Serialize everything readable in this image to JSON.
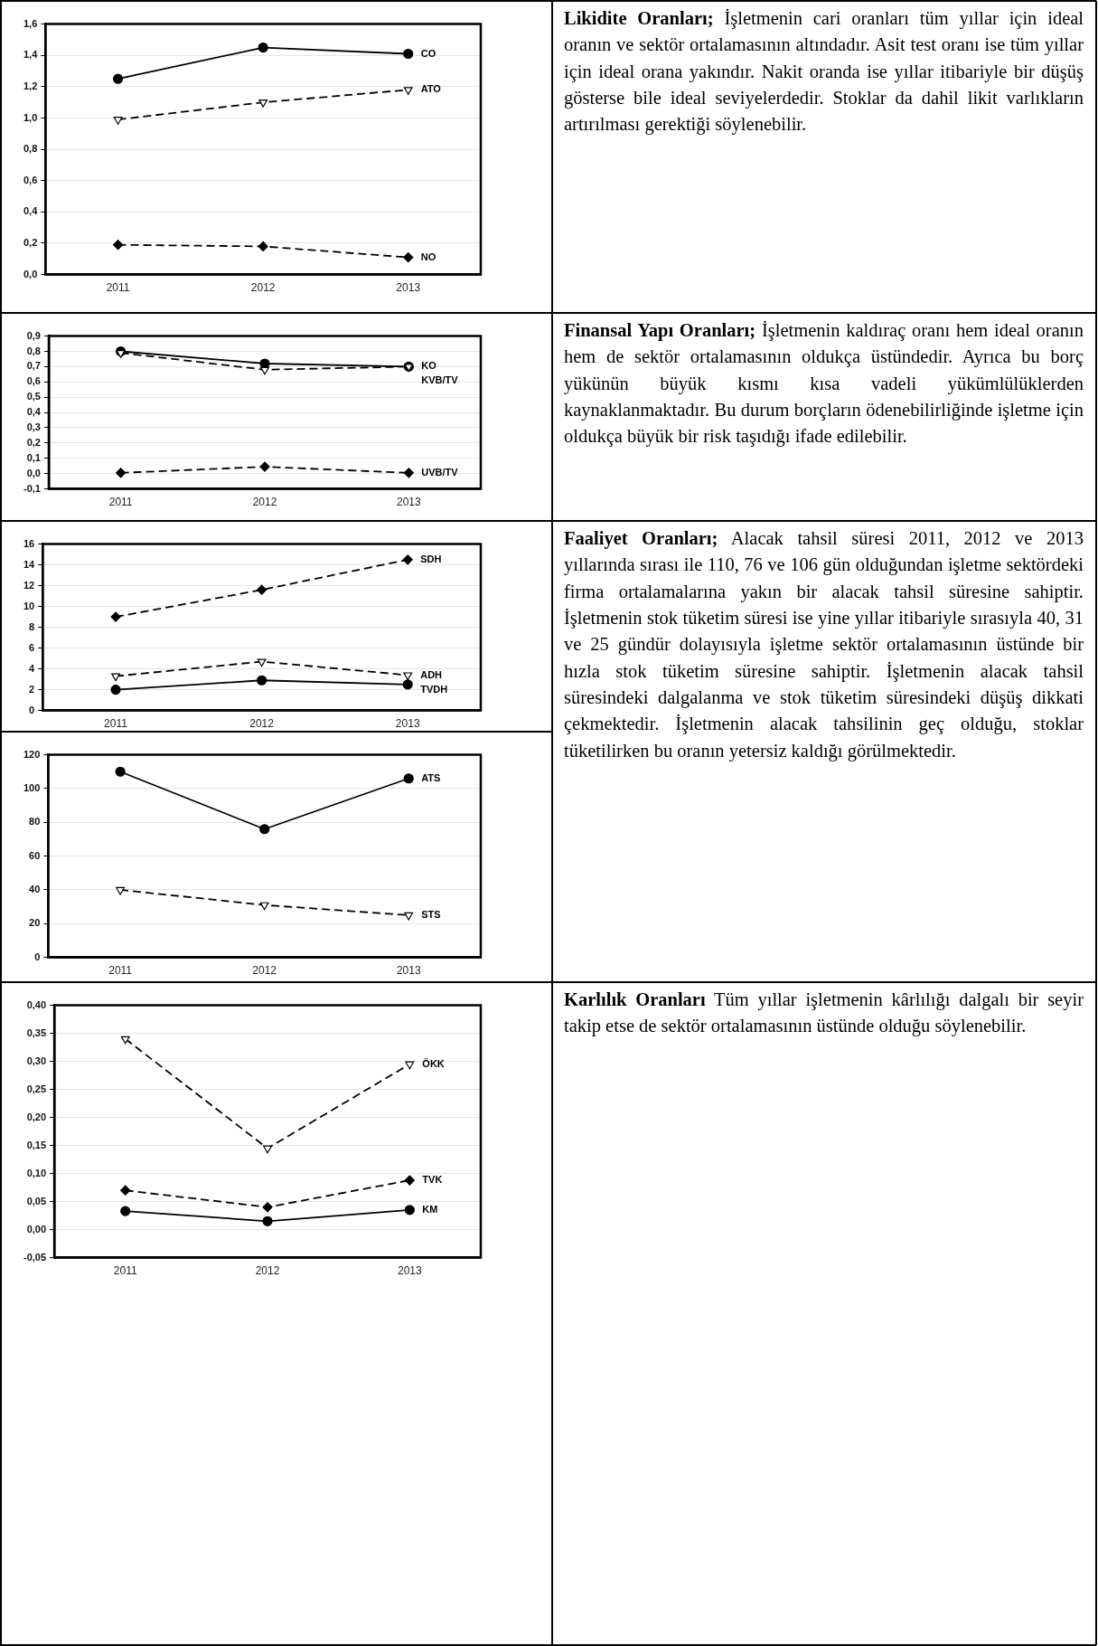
{
  "chart_data": [
    {
      "type": "line",
      "categories": [
        "2011",
        "2012",
        "2013"
      ],
      "ylim": [
        0,
        1.6
      ],
      "yticks": [
        {
          "value": 0,
          "label": "0,0"
        },
        {
          "value": 0.2,
          "label": "0,2"
        },
        {
          "value": 0.4,
          "label": "0,4"
        },
        {
          "value": 0.6,
          "label": "0,6"
        },
        {
          "value": 0.8,
          "label": "0,8"
        },
        {
          "value": 1.0,
          "label": "1,0"
        },
        {
          "value": 1.2,
          "label": "1,2"
        },
        {
          "value": 1.4,
          "label": "1,4"
        },
        {
          "value": 1.6,
          "label": "1,6"
        }
      ],
      "grid": "y",
      "legend": false,
      "series": [
        {
          "name": "CO",
          "color": "#000000",
          "marker": "circle",
          "line_style": "solid",
          "values": [
            1.25,
            1.45,
            1.41
          ]
        },
        {
          "name": "ATO",
          "color": "#000000",
          "marker": "triangle",
          "line_style": "dashed",
          "values": [
            0.99,
            1.1,
            1.18
          ]
        },
        {
          "name": "NO",
          "color": "#000000",
          "marker": "diamond",
          "line_style": "dashed",
          "values": [
            0.19,
            0.18,
            0.11
          ]
        }
      ]
    },
    {
      "type": "other",
      "title": "Likidite Oranları;",
      "subtitle": "İşletmenin cari oranları tüm yıllar için ideal oranın ve sektör ortalamasının altındadır. Asit test oranı ise tüm yıllar için ideal orana yakındır. Nakit oranda ise yıllar itibariyle bir düşüş gösterse bile ideal seviyelerdedir. Stoklar da dahil likit varlıkların artırılması gerektiği söylenebilir."
    },
    {
      "type": "line",
      "categories": [
        "2011",
        "2012",
        "2013"
      ],
      "ylim": [
        -0.1,
        0.9
      ],
      "yticks": [
        {
          "value": -0.1,
          "label": "-0,1"
        },
        {
          "value": 0,
          "label": "0,0"
        },
        {
          "value": 0.1,
          "label": "0,1"
        },
        {
          "value": 0.2,
          "label": "0,2"
        },
        {
          "value": 0.3,
          "label": "0,3"
        },
        {
          "value": 0.4,
          "label": "0,4"
        },
        {
          "value": 0.5,
          "label": "0,5"
        },
        {
          "value": 0.6,
          "label": "0,6"
        },
        {
          "value": 0.7,
          "label": "0,7"
        },
        {
          "value": 0.8,
          "label": "0,8"
        },
        {
          "value": 0.9,
          "label": "0,9"
        }
      ],
      "grid": "y",
      "legend": false,
      "series": [
        {
          "name": "KO",
          "color": "#000000",
          "marker": "circle",
          "line_style": "solid",
          "values": [
            0.8,
            0.72,
            0.7
          ]
        },
        {
          "name": "KVB/TV",
          "color": "#000000",
          "marker": "triangle",
          "line_style": "dashed",
          "values": [
            0.79,
            0.68,
            0.7
          ]
        },
        {
          "name": "UVB/TV",
          "color": "#000000",
          "marker": "diamond",
          "line_style": "dashed",
          "values": [
            0.005,
            0.045,
            0.005
          ]
        }
      ]
    },
    {
      "type": "other",
      "title": "Finansal Yapı Oranları;",
      "subtitle": "İşletmenin kaldıraç oranı hem ideal oranın hem de sektör ortalamasının oldukça üstündedir. Ayrıca bu borç yükünün büyük kısmı kısa vadeli yükümlülüklerden kaynaklanmaktadır. Bu durum borçların ödenebilirliğinde işletme için oldukça büyük bir risk taşıdığı ifade edilebilir."
    },
    {
      "type": "line",
      "categories": [
        "2011",
        "2012",
        "2013"
      ],
      "ylim": [
        0,
        16
      ],
      "yticks": [
        0,
        2,
        4,
        6,
        8,
        10,
        12,
        14,
        16
      ],
      "grid": "y",
      "legend": false,
      "series": [
        {
          "name": "SDH",
          "color": "#000000",
          "marker": "diamond",
          "line_style": "dashed",
          "values": [
            9.0,
            11.6,
            14.5
          ]
        },
        {
          "name": "ADH",
          "color": "#000000",
          "marker": "triangle",
          "line_style": "dashed",
          "values": [
            3.3,
            4.7,
            3.4
          ]
        },
        {
          "name": "TVDH",
          "color": "#000000",
          "marker": "circle",
          "line_style": "solid",
          "values": [
            2.0,
            2.9,
            2.5
          ]
        }
      ]
    },
    {
      "type": "other",
      "title": "Faaliyet Oranları;",
      "subtitle": "Alacak tahsil süresi 2011, 2012 ve 2013 yıllarında sırası ile 110, 76 ve 106 gün olduğundan işletme sektördeki firma ortalamalarına yakın bir alacak tahsil süresine sahiptir. İşletmenin stok tüketim süresi ise yine yıllar itibariyle sırasıyla 40, 31 ve 25 gündür dolayısıyla işletme sektör ortalamasının üstünde bir hızla stok tüketim süresine sahiptir. İşletmenin alacak tahsil süresindeki dalgalanma ve stok tüketim süresindeki düşüş dikkati çekmektedir. İşletmenin alacak tahsilinin geç olduğu, stoklar tüketilirken bu oranın yetersiz kaldığı görülmektedir."
    },
    {
      "type": "line",
      "categories": [
        "2011",
        "2012",
        "2013"
      ],
      "ylim": [
        0,
        120
      ],
      "yticks": [
        0,
        20,
        40,
        60,
        80,
        100,
        120
      ],
      "grid": "y",
      "legend": false,
      "series": [
        {
          "name": "ATS",
          "color": "#000000",
          "marker": "circle",
          "line_style": "solid",
          "values": [
            110,
            76,
            106
          ]
        },
        {
          "name": "STS",
          "color": "#000000",
          "marker": "triangle",
          "line_style": "dashed",
          "values": [
            40,
            31,
            25
          ]
        }
      ]
    },
    {
      "type": "line",
      "categories": [
        "2011",
        "2012",
        "2013"
      ],
      "ylim": [
        -0.05,
        0.4
      ],
      "yticks": [
        {
          "value": -0.05,
          "label": "-0,05"
        },
        {
          "value": 0,
          "label": "0,00"
        },
        {
          "value": 0.05,
          "label": "0,05"
        },
        {
          "value": 0.1,
          "label": "0,10"
        },
        {
          "value": 0.15,
          "label": "0,15"
        },
        {
          "value": 0.2,
          "label": "0,20"
        },
        {
          "value": 0.25,
          "label": "0,25"
        },
        {
          "value": 0.3,
          "label": "0,30"
        },
        {
          "value": 0.35,
          "label": "0,35"
        },
        {
          "value": 0.4,
          "label": "0,40"
        }
      ],
      "grid": "y",
      "legend": false,
      "series": [
        {
          "name": "ÖKK",
          "color": "#000000",
          "marker": "triangle",
          "line_style": "dashed",
          "values": [
            0.34,
            0.145,
            0.295
          ]
        },
        {
          "name": "TVK",
          "color": "#000000",
          "marker": "diamond",
          "line_style": "dashed",
          "values": [
            0.07,
            0.04,
            0.088
          ]
        },
        {
          "name": "KM",
          "color": "#000000",
          "marker": "circle",
          "line_style": "solid",
          "values": [
            0.033,
            0.015,
            0.035
          ]
        }
      ]
    },
    {
      "type": "other",
      "title": "Karlılık Oranları",
      "subtitle": "Tüm yıllar işletmenin kârlılığı dalgalı bir seyir takip etse de sektör ortalamasının üstünde olduğu söylenebilir."
    }
  ]
}
